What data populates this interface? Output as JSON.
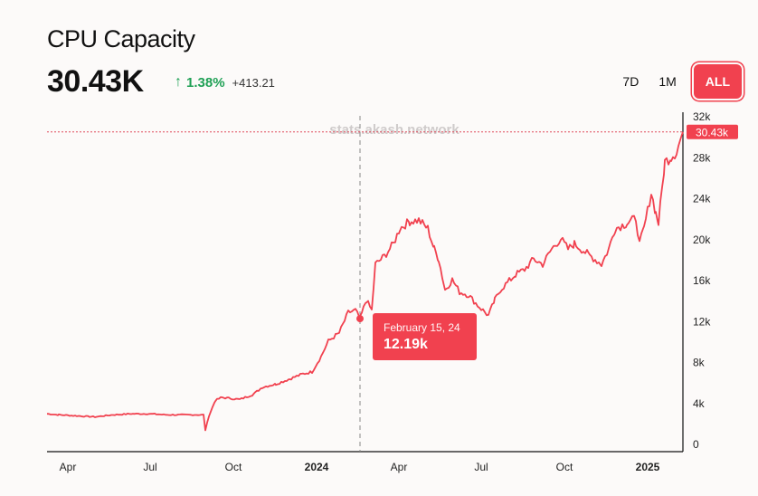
{
  "header": {
    "title": "CPU Capacity",
    "value": "30.43K",
    "change_pct": "1.38%",
    "change_abs": "+413.21",
    "arrow_icon": "arrow-up-icon"
  },
  "range_tabs": [
    {
      "label": "7D"
    },
    {
      "label": "1M"
    },
    {
      "label": "ALL",
      "active": true
    }
  ],
  "watermark": "stats.akash.network",
  "tooltip": {
    "date": "February 15, 24",
    "value": "12.19k"
  },
  "colors": {
    "line": "#f1414f",
    "positive": "#1fa055"
  },
  "chart_data": {
    "type": "line",
    "title": "CPU Capacity",
    "x_unit": "days since 2023-04-01",
    "ylim": [
      0,
      32000
    ],
    "yticks": [
      {
        "v": 0,
        "label": "0"
      },
      {
        "v": 4000,
        "label": "4k"
      },
      {
        "v": 8000,
        "label": "8k"
      },
      {
        "v": 12000,
        "label": "12k"
      },
      {
        "v": 16000,
        "label": "16k"
      },
      {
        "v": 20000,
        "label": "20k"
      },
      {
        "v": 24000,
        "label": "24k"
      },
      {
        "v": 28000,
        "label": "28k"
      },
      {
        "v": 32000,
        "label": "32k"
      }
    ],
    "xticks": [
      {
        "d": 0,
        "label": "Apr"
      },
      {
        "d": 91,
        "label": "Jul"
      },
      {
        "d": 183,
        "label": "Oct"
      },
      {
        "d": 275,
        "label": "2024",
        "bold": true
      },
      {
        "d": 366,
        "label": "Apr"
      },
      {
        "d": 457,
        "label": "Jul"
      },
      {
        "d": 549,
        "label": "Oct"
      },
      {
        "d": 641,
        "label": "2025",
        "bold": true
      }
    ],
    "xlim": [
      -23,
      680
    ],
    "current_value": {
      "v": 30430,
      "label": "30.43k"
    },
    "highlight": {
      "d": 323,
      "v": 12190
    },
    "points": [
      [
        -23,
        2900
      ],
      [
        -10,
        2800
      ],
      [
        10,
        2700
      ],
      [
        30,
        2600
      ],
      [
        50,
        2800
      ],
      [
        70,
        2900
      ],
      [
        90,
        2900
      ],
      [
        110,
        2800
      ],
      [
        130,
        2800
      ],
      [
        150,
        2800
      ],
      [
        152,
        1300
      ],
      [
        156,
        2700
      ],
      [
        163,
        4200
      ],
      [
        170,
        4500
      ],
      [
        190,
        4300
      ],
      [
        205,
        4800
      ],
      [
        215,
        5500
      ],
      [
        230,
        5800
      ],
      [
        245,
        6300
      ],
      [
        260,
        6800
      ],
      [
        270,
        7000
      ],
      [
        280,
        8500
      ],
      [
        288,
        10000
      ],
      [
        300,
        10800
      ],
      [
        310,
        12800
      ],
      [
        318,
        13000
      ],
      [
        323,
        12190
      ],
      [
        330,
        14000
      ],
      [
        336,
        13000
      ],
      [
        340,
        17500
      ],
      [
        350,
        18300
      ],
      [
        360,
        19500
      ],
      [
        367,
        21000
      ],
      [
        378,
        21700
      ],
      [
        388,
        21800
      ],
      [
        398,
        21000
      ],
      [
        405,
        19000
      ],
      [
        410,
        18000
      ],
      [
        417,
        15000
      ],
      [
        425,
        16000
      ],
      [
        433,
        14800
      ],
      [
        443,
        14500
      ],
      [
        453,
        13500
      ],
      [
        465,
        12500
      ],
      [
        472,
        14000
      ],
      [
        478,
        15000
      ],
      [
        495,
        16500
      ],
      [
        505,
        17000
      ],
      [
        515,
        18000
      ],
      [
        525,
        17500
      ],
      [
        535,
        19000
      ],
      [
        545,
        20000
      ],
      [
        553,
        19000
      ],
      [
        560,
        19500
      ],
      [
        575,
        18500
      ],
      [
        590,
        17500
      ],
      [
        598,
        19000
      ],
      [
        605,
        21000
      ],
      [
        618,
        21500
      ],
      [
        628,
        22000
      ],
      [
        632,
        19500
      ],
      [
        637,
        21000
      ],
      [
        645,
        24500
      ],
      [
        650,
        22500
      ],
      [
        653,
        21500
      ],
      [
        660,
        27500
      ],
      [
        667,
        28000
      ],
      [
        673,
        28500
      ],
      [
        680,
        30430
      ]
    ]
  }
}
